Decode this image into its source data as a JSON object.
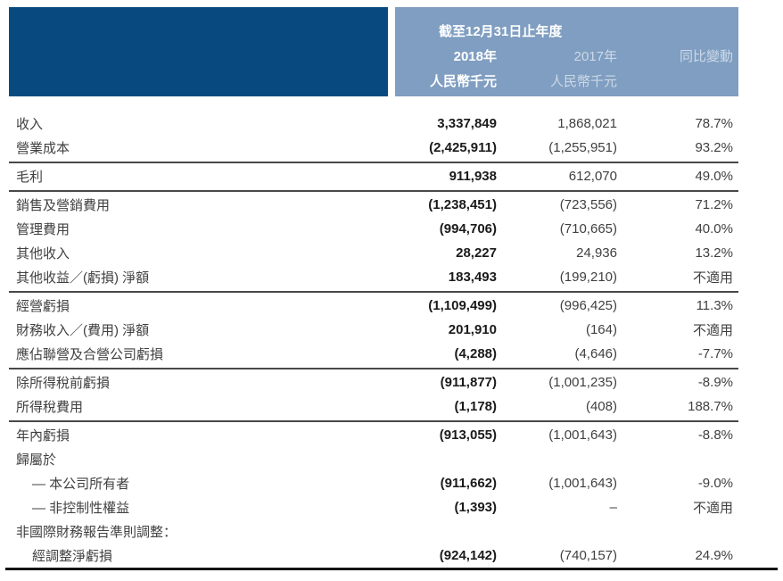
{
  "header": {
    "period_title": "截至12月31日止年度",
    "col_2018": "2018年",
    "col_2017": "2017年",
    "col_change": "同比變動",
    "unit_2018": "人民幣千元",
    "unit_2017": "人民幣千元",
    "colors": {
      "dark_block": "#084a7f",
      "light_block": "#7f9ec1"
    }
  },
  "rows": [
    {
      "type": "row",
      "label": "收入",
      "v2018": "3,337,849",
      "v2017": "1,868,021",
      "change": "78.7%",
      "indent": false
    },
    {
      "type": "row",
      "label": "營業成本",
      "v2018": "(2,425,911)",
      "v2017": "(1,255,951)",
      "change": "93.2%",
      "indent": false
    },
    {
      "type": "rule"
    },
    {
      "type": "row",
      "label": "毛利",
      "v2018": "911,938",
      "v2017": "612,070",
      "change": "49.0%",
      "indent": false
    },
    {
      "type": "rule"
    },
    {
      "type": "row",
      "label": "銷售及營銷費用",
      "v2018": "(1,238,451)",
      "v2017": "(723,556)",
      "change": "71.2%",
      "indent": false
    },
    {
      "type": "row",
      "label": "管理費用",
      "v2018": "(994,706)",
      "v2017": "(710,665)",
      "change": "40.0%",
      "indent": false
    },
    {
      "type": "row",
      "label": "其他收入",
      "v2018": "28,227",
      "v2017": "24,936",
      "change": "13.2%",
      "indent": false
    },
    {
      "type": "row",
      "label": "其他收益／(虧損) 淨額",
      "v2018": "183,493",
      "v2017": "(199,210)",
      "change": "不適用",
      "indent": false
    },
    {
      "type": "rule"
    },
    {
      "type": "row",
      "label": "經營虧損",
      "v2018": "(1,109,499)",
      "v2017": "(996,425)",
      "change": "11.3%",
      "indent": false
    },
    {
      "type": "row",
      "label": "財務收入／(費用) 淨額",
      "v2018": "201,910",
      "v2017": "(164)",
      "change": "不適用",
      "indent": false
    },
    {
      "type": "row",
      "label": "應佔聯營及合營公司虧損",
      "v2018": "(4,288)",
      "v2017": "(4,646)",
      "change": "-7.7%",
      "indent": false
    },
    {
      "type": "rule"
    },
    {
      "type": "row",
      "label": "除所得稅前虧損",
      "v2018": "(911,877)",
      "v2017": "(1,001,235)",
      "change": "-8.9%",
      "indent": false
    },
    {
      "type": "row",
      "label": "所得稅費用",
      "v2018": "(1,178)",
      "v2017": "(408)",
      "change": "188.7%",
      "indent": false
    },
    {
      "type": "rule"
    },
    {
      "type": "row",
      "label": "年內虧損",
      "v2018": "(913,055)",
      "v2017": "(1,001,643)",
      "change": "-8.8%",
      "indent": false
    },
    {
      "type": "row",
      "label": "歸屬於",
      "v2018": "",
      "v2017": "",
      "change": "",
      "indent": false
    },
    {
      "type": "row",
      "label": "— 本公司所有者",
      "v2018": "(911,662)",
      "v2017": "(1,001,643)",
      "change": "-9.0%",
      "indent": true
    },
    {
      "type": "row",
      "label": "— 非控制性權益",
      "v2018": "(1,393)",
      "v2017": "–",
      "change": "不適用",
      "indent": true
    },
    {
      "type": "row",
      "label": "非國際財務報告準則調整：",
      "v2018": "",
      "v2017": "",
      "change": "",
      "indent": false
    },
    {
      "type": "row",
      "label": "經調整淨虧損",
      "v2018": "(924,142)",
      "v2017": "(740,157)",
      "change": "24.9%",
      "indent": true
    }
  ]
}
